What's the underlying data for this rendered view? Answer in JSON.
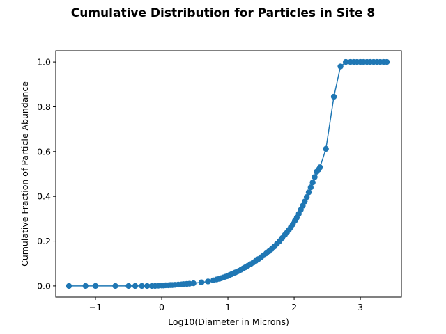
{
  "chart_data": {
    "type": "line",
    "title": "Cumulative Distribution for Particles in Site 8",
    "xlabel": "Log10(Diameter in Microns)",
    "ylabel": "Cumulative Fraction of Particle Abundance",
    "xlim": [
      -1.6,
      3.62
    ],
    "ylim": [
      -0.05,
      1.05
    ],
    "xticks": [
      -1,
      0,
      1,
      2,
      3
    ],
    "xtick_labels": [
      "−1",
      "0",
      "1",
      "2",
      "3"
    ],
    "yticks": [
      0.0,
      0.2,
      0.4,
      0.6,
      0.8,
      1.0
    ],
    "ytick_labels": [
      "0.0",
      "0.2",
      "0.4",
      "0.6",
      "0.8",
      "1.0"
    ],
    "grid": false,
    "series_color": "#1f77b4",
    "series": [
      {
        "marker": "circle",
        "x": [
          -1.4,
          -1.15,
          -1.0,
          -0.7,
          -0.5,
          -0.4,
          -0.3,
          -0.22,
          -0.15,
          -0.1,
          -0.05,
          0.0,
          0.03,
          0.06,
          0.1,
          0.13,
          0.16,
          0.2,
          0.25,
          0.3,
          0.33,
          0.38,
          0.42,
          0.48,
          0.6,
          0.7,
          0.78,
          0.83,
          0.87,
          0.9,
          0.93,
          0.96,
          0.99,
          1.02,
          1.05,
          1.08,
          1.11,
          1.14,
          1.17,
          1.2,
          1.23,
          1.26,
          1.3,
          1.34,
          1.38,
          1.42,
          1.46,
          1.5,
          1.54,
          1.58,
          1.62,
          1.66,
          1.7,
          1.74,
          1.78,
          1.82,
          1.86,
          1.89,
          1.92,
          1.95,
          1.98,
          2.01,
          2.04,
          2.07,
          2.1,
          2.13,
          2.16,
          2.19,
          2.22,
          2.25,
          2.28,
          2.31,
          2.34,
          2.37,
          2.39,
          2.48,
          2.6,
          2.7,
          2.78,
          2.85,
          2.9,
          2.95,
          3.0,
          3.05,
          3.1,
          3.15,
          3.2,
          3.25,
          3.3,
          3.35,
          3.4
        ],
        "y": [
          0.0,
          0.0,
          0.0,
          0.0,
          0.0,
          0.0,
          0.0,
          0.0,
          0.0,
          0.0,
          0.001,
          0.002,
          0.002,
          0.003,
          0.003,
          0.004,
          0.004,
          0.005,
          0.006,
          0.007,
          0.008,
          0.009,
          0.01,
          0.012,
          0.016,
          0.02,
          0.025,
          0.029,
          0.032,
          0.035,
          0.038,
          0.041,
          0.044,
          0.048,
          0.052,
          0.056,
          0.06,
          0.064,
          0.068,
          0.073,
          0.078,
          0.083,
          0.09,
          0.097,
          0.104,
          0.112,
          0.12,
          0.128,
          0.137,
          0.146,
          0.155,
          0.165,
          0.176,
          0.188,
          0.2,
          0.214,
          0.228,
          0.238,
          0.25,
          0.262,
          0.275,
          0.29,
          0.305,
          0.322,
          0.34,
          0.358,
          0.377,
          0.397,
          0.418,
          0.44,
          0.462,
          0.486,
          0.51,
          0.52,
          0.53,
          0.612,
          0.845,
          0.98,
          1.0,
          1.0,
          1.0,
          1.0,
          1.0,
          1.0,
          1.0,
          1.0,
          1.0,
          1.0,
          1.0,
          1.0,
          1.0
        ]
      }
    ]
  }
}
